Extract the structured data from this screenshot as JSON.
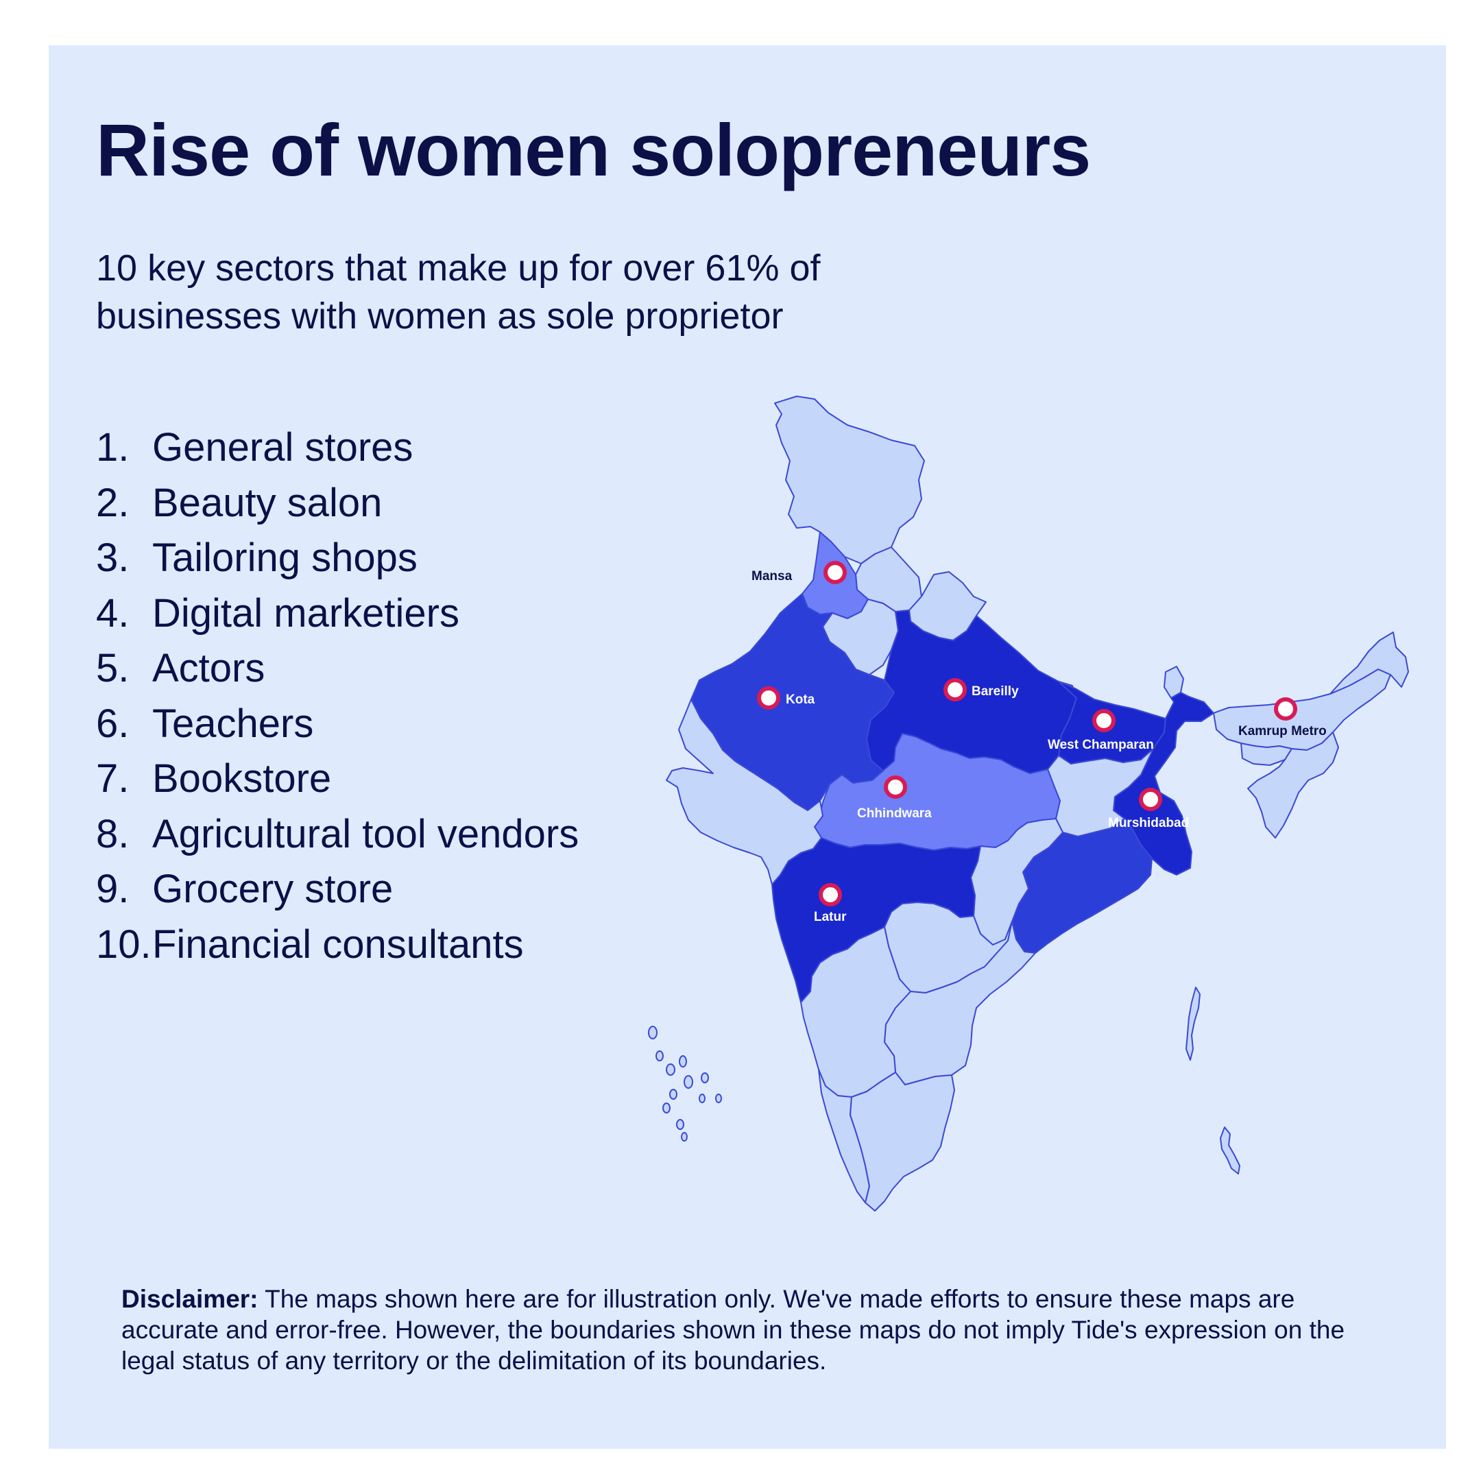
{
  "title": "Rise of women solopreneurs",
  "subtitle": "10 key sectors that make up for over 61% of businesses with women as sole proprietor",
  "sectors": [
    {
      "num": "1.",
      "label": "General stores"
    },
    {
      "num": "2.",
      "label": "Beauty salon"
    },
    {
      "num": "3.",
      "label": "Tailoring shops"
    },
    {
      "num": "4.",
      "label": "Digital marketiers"
    },
    {
      "num": "5.",
      "label": "Actors"
    },
    {
      "num": "6.",
      "label": "Teachers"
    },
    {
      "num": "7.",
      "label": "Bookstore"
    },
    {
      "num": "8.",
      "label": "Agricultural tool vendors"
    },
    {
      "num": "9.",
      "label": "Grocery store"
    },
    {
      "num": "10.",
      "label": "Financial consultants"
    }
  ],
  "map": {
    "colors": {
      "background": "#dfebfd",
      "light": "#c5d6fb",
      "medium": "#6f7ff7",
      "strong": "#2b3fd8",
      "darkest": "#1a27cc",
      "border": "#3a49d6",
      "marker": "#d81b55"
    },
    "locations": [
      {
        "name": "Mansa",
        "label_style": "dark"
      },
      {
        "name": "Kota",
        "label_style": "light"
      },
      {
        "name": "Bareilly",
        "label_style": "light"
      },
      {
        "name": "West Champaran",
        "label_style": "light"
      },
      {
        "name": "Kamrup Metro",
        "label_style": "dark"
      },
      {
        "name": "Chhindwara",
        "label_style": "light"
      },
      {
        "name": "Murshidabad",
        "label_style": "light"
      },
      {
        "name": "Latur",
        "label_style": "light"
      }
    ]
  },
  "disclaimer": {
    "label": "Disclaimer:",
    "text": " The maps shown here are for illustration only. We've made efforts to ensure these maps are accurate and error-free. However, the boundaries shown in these maps do not imply Tide's expression on the legal status of any territory or the delimitation of its boundaries."
  }
}
